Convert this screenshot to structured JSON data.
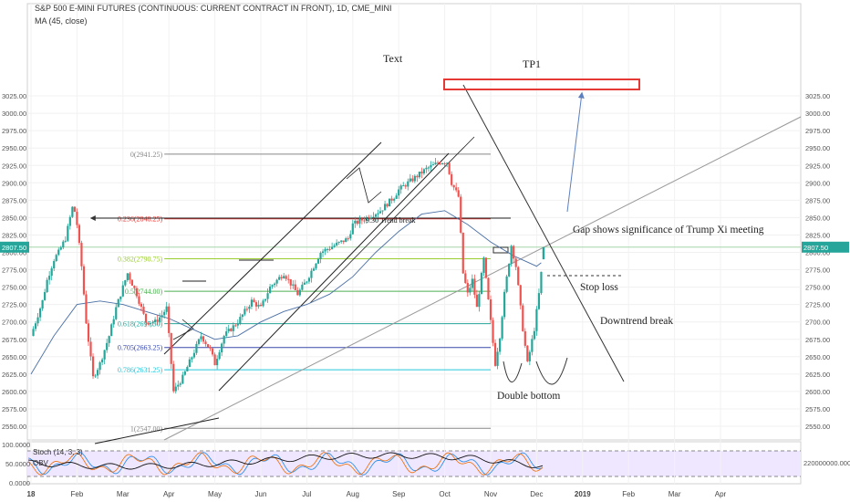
{
  "header": {
    "title": "S&P 500 E-MINI FUTURES (CONTINUOUS: CURRENT CONTRACT IN FRONT), 1D, CME_MINI",
    "ma": "MA (45, close)"
  },
  "chart_data": {
    "type": "candlestick",
    "y_axis": {
      "range": [
        2525,
        3035
      ],
      "ticks": [
        3025,
        3000,
        2975,
        2950,
        2925,
        2900,
        2875,
        2850,
        2825,
        2800,
        2775,
        2750,
        2725,
        2700,
        2675,
        2650,
        2625,
        2600,
        2575,
        2550
      ],
      "tick_labels": [
        "3025.00",
        "3000.00",
        "2975.00",
        "2950.00",
        "2925.00",
        "2900.00",
        "2875.00",
        "2850.00",
        "2825.00",
        "2800.00",
        "2775.00",
        "2750.00",
        "2725.00",
        "2700.00",
        "2675.00",
        "2650.00",
        "2625.00",
        "2600.00",
        "2575.00",
        "2550.00"
      ]
    },
    "x_axis": {
      "labels": [
        "18",
        "Feb",
        "Mar",
        "Apr",
        "May",
        "Jun",
        "Jul",
        "Aug",
        "Sep",
        "Oct",
        "Nov",
        "Dec",
        "2019",
        "Feb",
        "Mar",
        "Apr"
      ],
      "label_months": [
        0,
        1,
        2,
        3,
        4,
        5,
        6,
        7,
        8,
        9,
        10,
        11,
        12,
        13,
        14,
        15
      ],
      "bold_labels": [
        "18",
        "2019"
      ]
    },
    "last_price": {
      "value": 2807.5,
      "label": "2807.50"
    },
    "price_path_months": [
      0.0,
      0.1,
      0.25,
      0.35,
      0.5,
      0.6,
      0.75,
      0.85,
      0.92,
      1.0,
      1.1,
      1.2,
      1.35,
      1.5,
      1.7,
      1.85,
      2.0,
      2.1,
      2.3,
      2.5,
      2.7,
      2.85,
      2.95,
      3.05,
      3.1,
      3.3,
      3.5,
      3.7,
      3.9,
      4.0,
      4.2,
      4.5,
      4.8,
      5.0,
      5.2,
      5.5,
      5.8,
      6.0,
      6.3,
      6.6,
      6.9,
      7.0,
      7.3,
      7.6,
      7.9,
      8.0,
      8.3,
      8.6,
      8.9,
      9.05,
      9.15,
      9.3,
      9.4,
      9.5,
      9.6,
      9.7,
      9.85,
      9.95,
      10.1,
      10.2,
      10.3,
      10.45,
      10.55,
      10.7,
      10.8,
      10.95,
      11.05,
      11.1
    ],
    "price_path": [
      2680,
      2700,
      2730,
      2760,
      2790,
      2800,
      2820,
      2850,
      2870,
      2840,
      2780,
      2700,
      2620,
      2640,
      2680,
      2720,
      2750,
      2770,
      2740,
      2700,
      2700,
      2710,
      2720,
      2640,
      2600,
      2620,
      2650,
      2680,
      2660,
      2640,
      2680,
      2700,
      2730,
      2720,
      2750,
      2770,
      2740,
      2760,
      2800,
      2810,
      2820,
      2840,
      2850,
      2860,
      2880,
      2890,
      2905,
      2920,
      2930,
      2930,
      2900,
      2880,
      2770,
      2740,
      2760,
      2720,
      2790,
      2730,
      2640,
      2680,
      2740,
      2810,
      2780,
      2690,
      2640,
      2690,
      2740,
      2770
    ],
    "last_candle_month": 11.15,
    "moving_average": {
      "name": "MA (45, close)",
      "months": [
        0,
        0.5,
        1.0,
        1.5,
        2.0,
        2.5,
        3.0,
        3.5,
        4.0,
        4.5,
        5.0,
        5.5,
        6.0,
        6.5,
        7.0,
        7.5,
        8.0,
        8.5,
        9.0,
        9.5,
        10.0,
        10.5,
        11.0,
        11.1
      ],
      "values": [
        2625,
        2680,
        2725,
        2730,
        2725,
        2715,
        2705,
        2690,
        2675,
        2680,
        2700,
        2715,
        2725,
        2740,
        2765,
        2800,
        2830,
        2855,
        2860,
        2840,
        2815,
        2795,
        2780,
        2785
      ]
    },
    "fibonacci": {
      "levels": [
        {
          "label": "0(2941.25)",
          "price": 2941.25,
          "color": "#888888"
        },
        {
          "label": "0.236(2848.25)",
          "price": 2848.25,
          "color": "#e53935"
        },
        {
          "label": "0.382(2790.75)",
          "price": 2790.75,
          "color": "#9acd32"
        },
        {
          "label": "0.5(2744.00)",
          "price": 2744.0,
          "color": "#4caf50"
        },
        {
          "label": "0.618(2697.50)",
          "price": 2697.5,
          "color": "#26a69a"
        },
        {
          "label": "0.705(2663.25)",
          "price": 2663.25,
          "color": "#3949ab"
        },
        {
          "label": "0.786(2631.25)",
          "price": 2631.25,
          "color": "#26c6da"
        },
        {
          "label": "1(2547.00)",
          "price": 2547.0,
          "color": "#888888"
        }
      ],
      "start_month": 2.9,
      "end_month": 10.0
    },
    "annotations": {
      "text_label": "Text",
      "tp1": "TP1",
      "trend_break": "9.30 Trend break",
      "gap_note": "Gap shows significance of Trump Xi meeting",
      "stop_loss": "Stop loss",
      "downtrend_break": "Downtrend break",
      "double_bottom": "Double bottom"
    },
    "indicator": {
      "label": "Stoch (14, 3, 3)",
      "obv_label": "OBV",
      "left_ticks": [
        "100.0000",
        "50.0000",
        "0.0000"
      ],
      "right_tick": "220000000.0000"
    }
  }
}
